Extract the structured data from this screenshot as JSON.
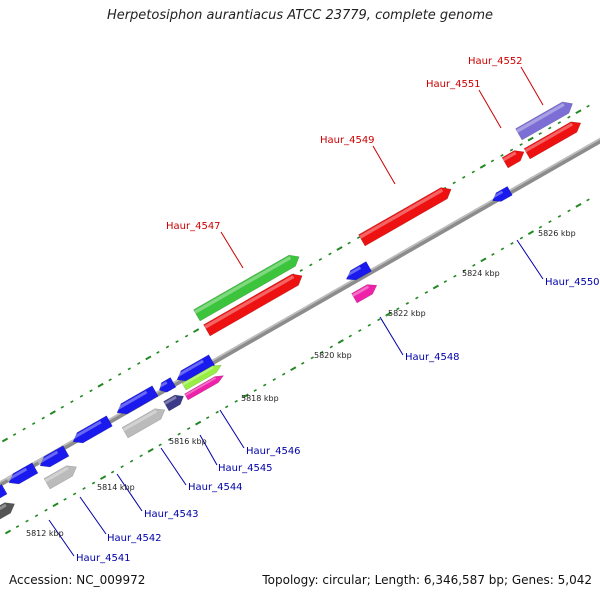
{
  "title": "Herpetosiphon aurantiacus ATCC 23779, complete genome",
  "accession_text": "Accession: NC_009972",
  "topology_text": "Topology: circular; Length: 6,346,587 bp; Genes: 5,042",
  "colors": {
    "forward_label": "#cc0000",
    "reverse_label": "#0000aa",
    "tick": "#228822",
    "backbone": "#8c8c8c"
  },
  "kbp_labels": [
    "5812 kbp",
    "5814 kbp",
    "5816 kbp",
    "5818 kbp",
    "5820 kbp",
    "5822 kbp",
    "5824 kbp",
    "5826 kbp"
  ],
  "forward_labels": [
    "Haur_4547",
    "Haur_4549",
    "Haur_4551",
    "Haur_4552"
  ],
  "reverse_labels": [
    "Haur_4541",
    "Haur_4542",
    "Haur_4543",
    "Haur_4544",
    "Haur_4545",
    "Haur_4546",
    "Haur_4548",
    "Haur_4550"
  ]
}
